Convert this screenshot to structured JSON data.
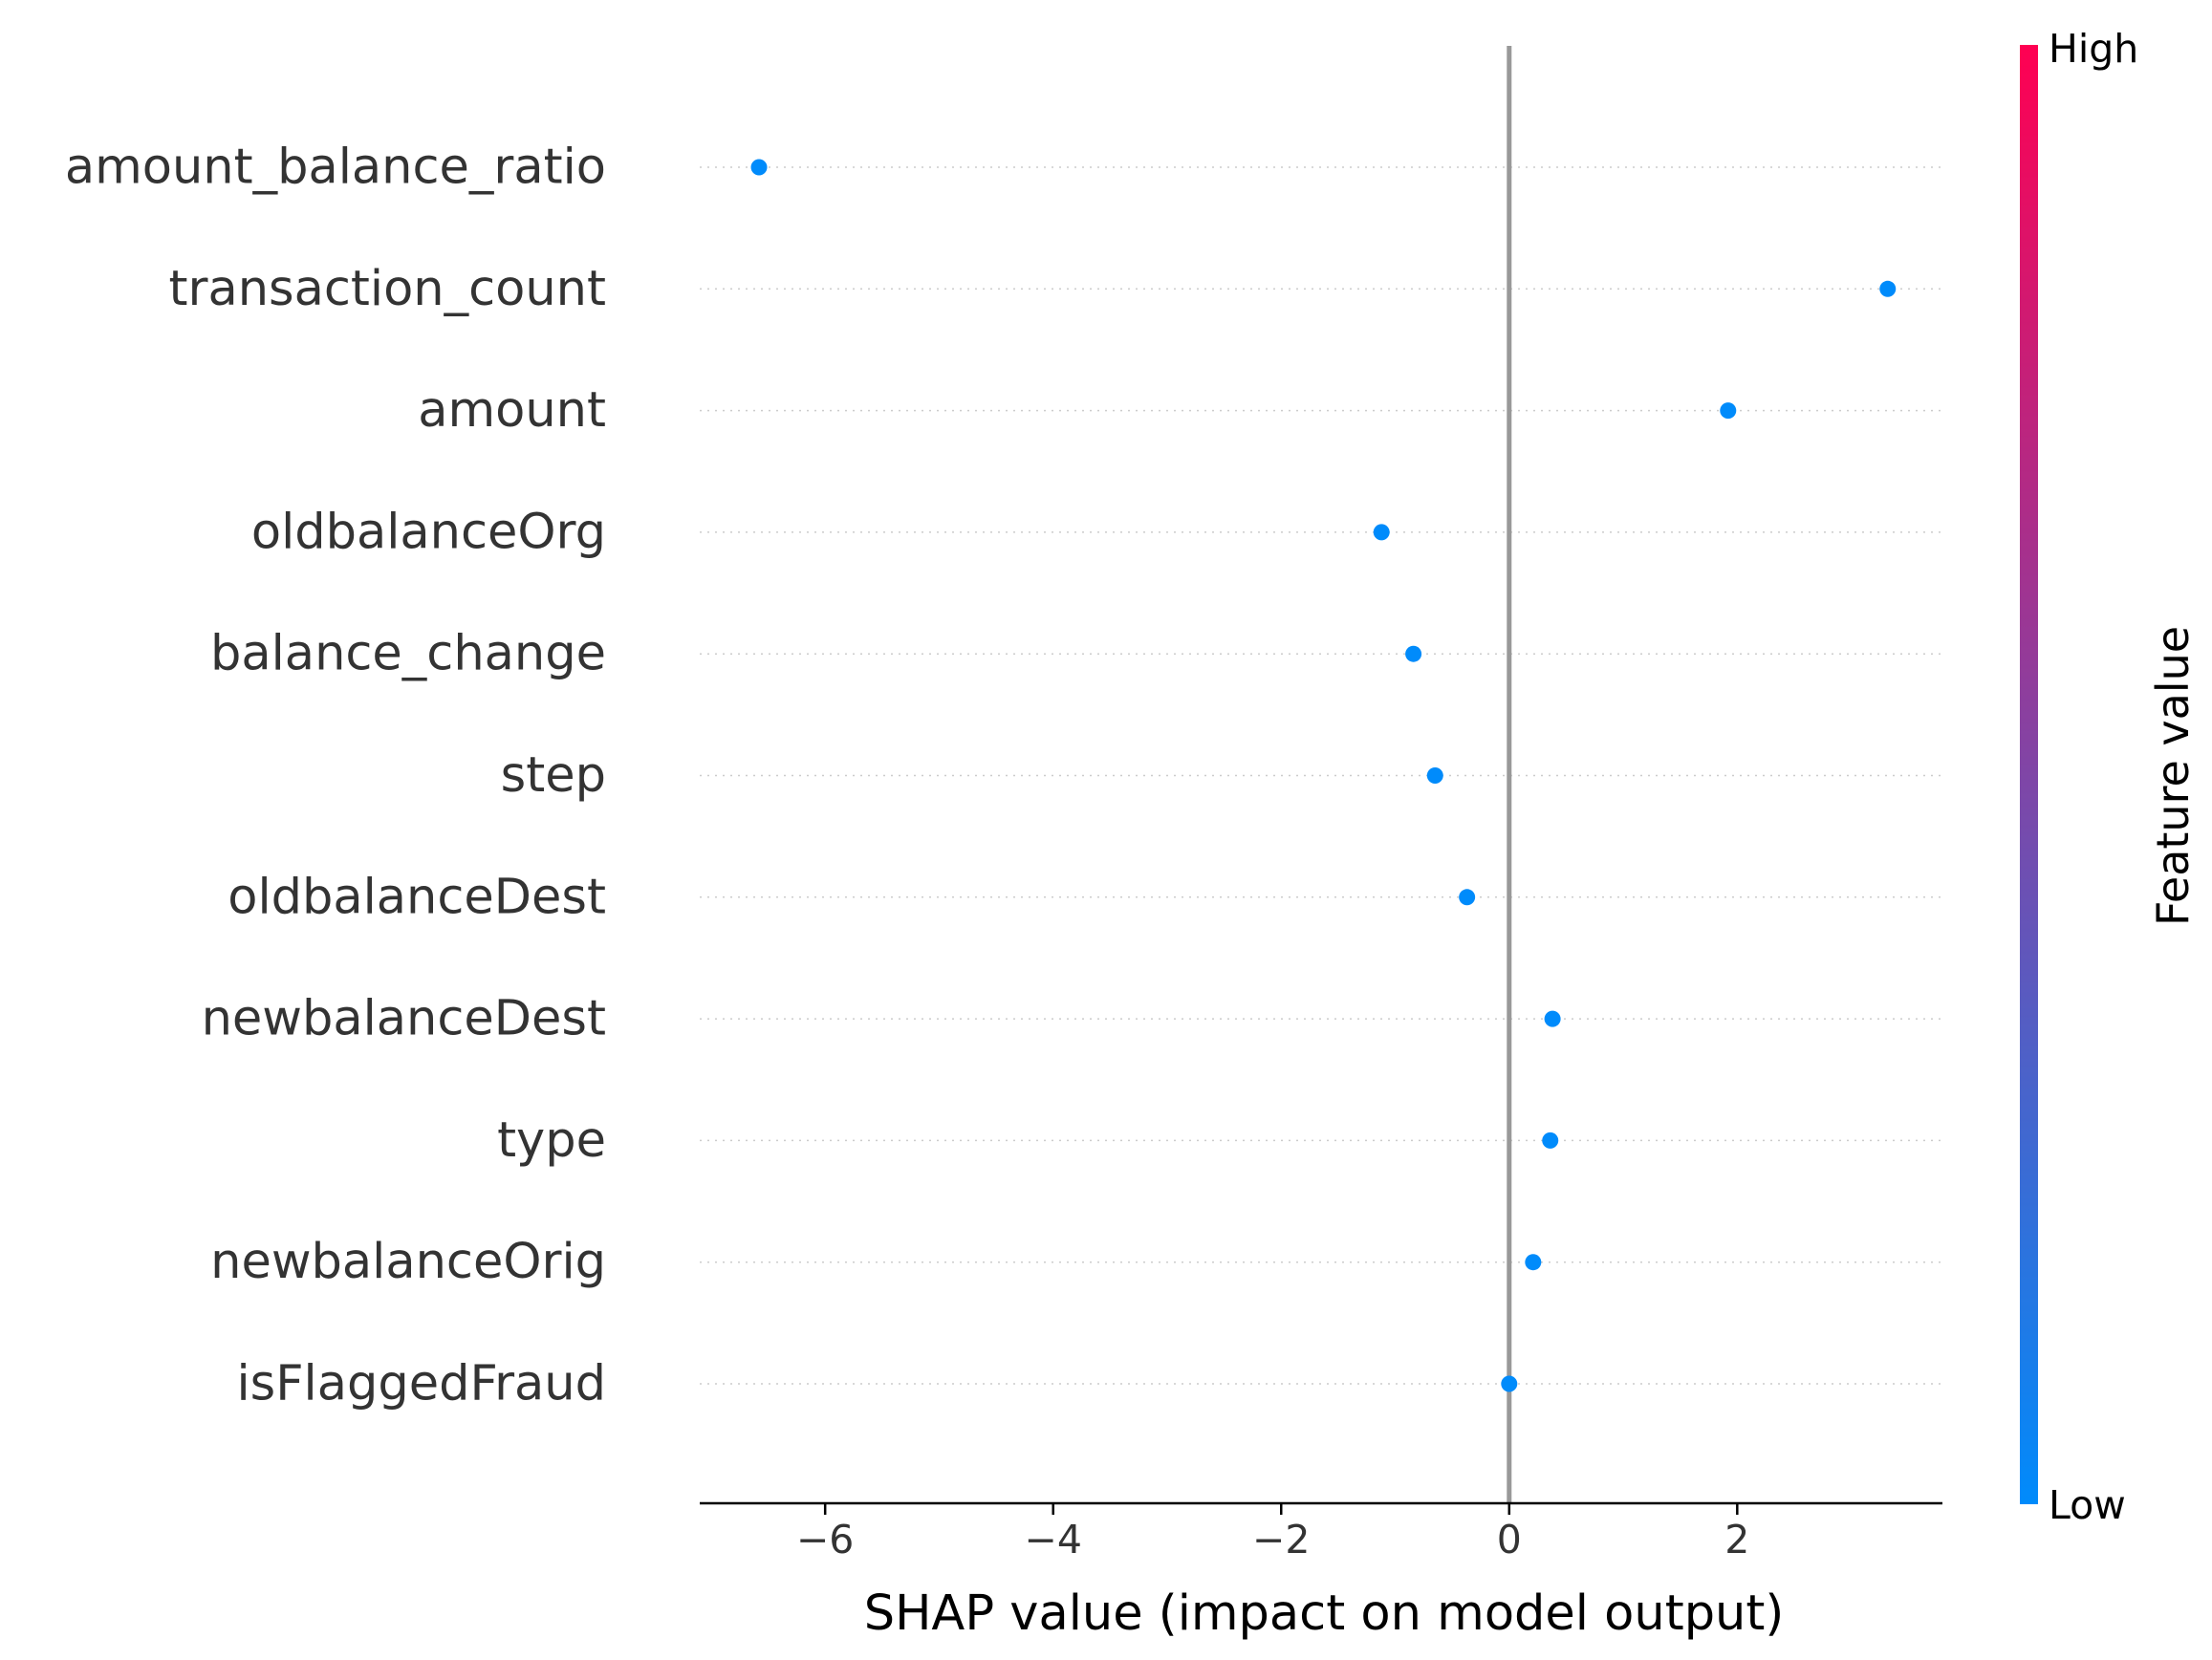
{
  "chart_data": {
    "type": "scatter",
    "title": "",
    "xlabel": "SHAP value (impact on model output)",
    "ylabel": "",
    "xlim": [
      -7.1,
      3.8
    ],
    "xticks": [
      -6,
      -4,
      -2,
      0,
      2
    ],
    "xtick_labels": [
      "−6",
      "−4",
      "−2",
      "0",
      "2"
    ],
    "grid": "dotted horizontal rows",
    "categories": [
      "amount_balance_ratio",
      "transaction_count",
      "amount",
      "oldbalanceOrg",
      "balance_change",
      "step",
      "oldbalanceDest",
      "newbalanceDest",
      "type",
      "newbalanceOrig",
      "isFlaggedFraud"
    ],
    "values": [
      -6.58,
      3.32,
      1.92,
      -1.12,
      -0.84,
      -0.65,
      -0.37,
      0.38,
      0.36,
      0.21,
      0.0
    ],
    "point_color": "#008bfb",
    "zero_line_color": "#999999",
    "colorbar": {
      "label": "Feature value",
      "high_label": "High",
      "low_label": "Low",
      "high_color": "#ff0052",
      "low_color": "#008bfb"
    }
  }
}
